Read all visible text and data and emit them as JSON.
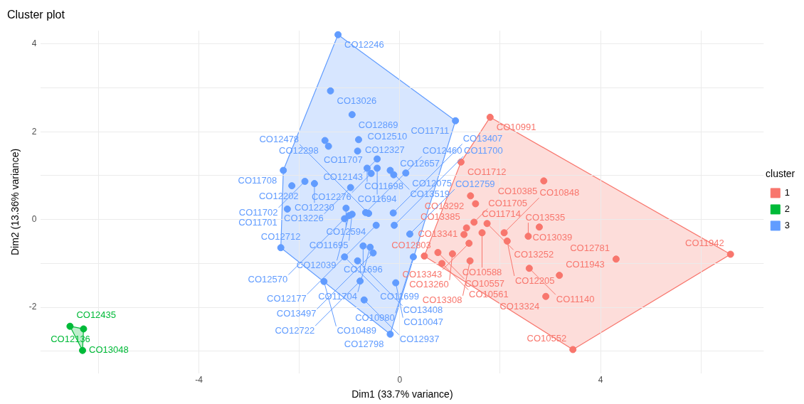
{
  "chart_data": {
    "type": "scatter",
    "title": "Cluster plot",
    "xlabel": "Dim1 (33.7% variance)",
    "ylabel": "Dim2 (13.36% variance)",
    "legend_title": "cluster",
    "legend": "right",
    "grid": true,
    "marker": "circle",
    "xlim": [
      -7.15,
      7.25
    ],
    "ylim": [
      -3.5,
      4.3
    ],
    "xticks": [
      {
        "value": -6,
        "label": null
      },
      -4,
      {
        "value": -2,
        "label": null
      },
      0,
      {
        "value": 2,
        "label": null
      },
      4,
      {
        "value": 6,
        "label": null
      }
    ],
    "yticks": [
      {
        "value": -3,
        "label": null
      },
      -2,
      {
        "value": -1,
        "label": null
      },
      0,
      {
        "value": 1,
        "label": null
      },
      2,
      {
        "value": 3,
        "label": null
      },
      4
    ],
    "series": [
      {
        "name": "1",
        "color": "#f8766d",
        "x": [
          1.8,
          1.22,
          2.87,
          1.41,
          1.51,
          1.48,
          1.74,
          1.33,
          2.78,
          1.28,
          1.64,
          2.08,
          2.56,
          2.14,
          1.38,
          0.49,
          0.76,
          1.05,
          0.84,
          1.4,
          4.31,
          2.58,
          3.18,
          2.91,
          6.59,
          3.45
        ],
        "values": [
          2.33,
          1.31,
          0.88,
          0.54,
          0.36,
          -0.06,
          -0.09,
          -0.19,
          -0.17,
          -0.34,
          -0.3,
          -0.3,
          -0.38,
          -0.49,
          -0.54,
          -0.83,
          -0.75,
          -0.78,
          -1.0,
          -0.94,
          -0.9,
          -1.11,
          -1.27,
          -1.75,
          -0.79,
          -2.96
        ],
        "value_labels": [
          "CO10991",
          "CO11712",
          "CO10385",
          "CO13292",
          "CO11714",
          "CO11705",
          "CO13252",
          "CO13385",
          "CO13039",
          "CO13341",
          "CO10588",
          "CO10848",
          "CO13535",
          "CO12205",
          "CO13343",
          "CO12803",
          "CO10557",
          "CO13260",
          "CO10561",
          "CO13308",
          "CO12781",
          "CO11140",
          "CO11943",
          "CO13324",
          "CO11942",
          "CO10552"
        ]
      },
      {
        "name": "2",
        "color": "#00ba38",
        "x": [
          -6.57,
          -6.3,
          -6.32
        ],
        "values": [
          -2.43,
          -2.49,
          -2.98
        ],
        "value_labels": [
          "CO12435",
          "CO12136",
          "CO13048"
        ]
      },
      {
        "name": "3",
        "color": "#619cff",
        "x": [
          -1.23,
          -1.38,
          -0.95,
          1.11,
          -1.49,
          -1.42,
          -0.82,
          -0.84,
          -0.45,
          -0.65,
          -0.57,
          -0.45,
          -0.19,
          -0.12,
          0.12,
          -2.32,
          -2.15,
          -1.89,
          -1.7,
          -0.98,
          -1.07,
          -2.24,
          -0.95,
          -1.01,
          -1.1,
          -0.68,
          -0.62,
          -0.13,
          -0.47,
          -0.11,
          0.2,
          -2.37,
          -0.73,
          -0.59,
          -0.53,
          -1.1,
          -0.84,
          0.27,
          -1.51,
          -0.79,
          -0.08,
          -0.71,
          -0.19
        ],
        "values": [
          4.21,
          2.93,
          2.39,
          2.25,
          1.8,
          1.67,
          1.82,
          1.56,
          1.38,
          1.17,
          1.05,
          1.17,
          1.12,
          1.02,
          1.06,
          1.12,
          0.77,
          0.87,
          0.82,
          0.73,
          0.26,
          0.24,
          0.12,
          0.09,
          0.02,
          0.16,
          0.14,
          0.15,
          -0.13,
          -0.13,
          -0.33,
          -0.64,
          -0.6,
          -0.63,
          -0.76,
          -0.85,
          -0.94,
          -0.85,
          -1.41,
          -1.4,
          -1.44,
          -1.83,
          -2.61
        ],
        "value_labels": [
          "CO12246",
          "CO13026",
          "CO12869",
          "CO11711",
          "CO12298",
          "CO11707",
          "CO12327",
          "CO12510",
          "CO12143",
          "CO11698",
          "CO12276",
          "CO11694",
          "CO13519",
          "CO12657",
          "CO12075",
          "CO11708",
          "CO12202",
          "CO11702",
          "CO12230",
          "CO13226",
          "CO12594",
          "CO11701",
          "CO11695",
          "CO12039",
          "CO12570",
          "CO12460",
          "CO12478",
          "CO13407",
          "CO12177",
          "CO11700",
          "CO12759",
          "CO12712",
          "CO11696",
          "CO11704",
          "CO13497",
          "CO11699",
          "CO13408",
          "CO10980",
          "CO10489",
          "CO12722",
          "CO10047",
          "CO12937",
          "CO12798"
        ]
      }
    ]
  }
}
